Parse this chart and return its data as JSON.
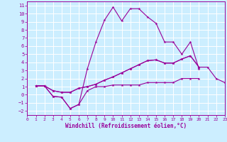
{
  "xlabel": "Windchill (Refroidissement éolien,°C)",
  "bg_color": "#cceeff",
  "line_color": "#990099",
  "grid_color": "#ffffff",
  "xlim": [
    0,
    23
  ],
  "ylim": [
    -2.5,
    11.5
  ],
  "xticks": [
    0,
    1,
    2,
    3,
    4,
    5,
    6,
    7,
    8,
    9,
    10,
    11,
    12,
    13,
    14,
    15,
    16,
    17,
    18,
    19,
    20,
    21,
    22,
    23
  ],
  "yticks": [
    -2,
    -1,
    0,
    1,
    2,
    3,
    4,
    5,
    6,
    7,
    8,
    9,
    10,
    11
  ],
  "line1_x": [
    1,
    2,
    3,
    4,
    5,
    6,
    7,
    8,
    9,
    10,
    11,
    12,
    13,
    14,
    15,
    16,
    17,
    18,
    19,
    20
  ],
  "line1_y": [
    1.1,
    1.1,
    -0.2,
    -0.3,
    -1.7,
    -1.2,
    3.2,
    6.5,
    9.2,
    10.8,
    9.1,
    10.6,
    10.6,
    9.6,
    8.8,
    6.5,
    6.5,
    5.0,
    6.5,
    3.2
  ],
  "line2_x": [
    1,
    2,
    3,
    4,
    5,
    6,
    7,
    8,
    9,
    10,
    11,
    12,
    13,
    14,
    15,
    16,
    17,
    18,
    19,
    20
  ],
  "line2_y": [
    1.1,
    1.1,
    -0.2,
    -0.3,
    -1.7,
    -1.2,
    0.5,
    1.0,
    1.0,
    1.2,
    1.2,
    1.2,
    1.2,
    1.5,
    1.5,
    1.5,
    1.5,
    2.0,
    2.0,
    2.0
  ],
  "line3_x": [
    1,
    2,
    3,
    4,
    5,
    6,
    7,
    8,
    9,
    10,
    11,
    12,
    13,
    14,
    15,
    16,
    17,
    18,
    19,
    20
  ],
  "line3_y": [
    1.1,
    1.1,
    0.5,
    0.3,
    0.3,
    0.8,
    1.0,
    1.3,
    1.8,
    2.2,
    2.7,
    3.2,
    3.7,
    4.2,
    4.3,
    3.9,
    3.9,
    4.4,
    4.8,
    3.4
  ],
  "line4_x": [
    1,
    2,
    3,
    4,
    5,
    6,
    7,
    8,
    9,
    10,
    11,
    12,
    13,
    14,
    15,
    16,
    17,
    18,
    19,
    20,
    21,
    22,
    23
  ],
  "line4_y": [
    1.1,
    1.1,
    0.5,
    0.3,
    0.3,
    0.8,
    1.0,
    1.3,
    1.8,
    2.2,
    2.7,
    3.2,
    3.7,
    4.2,
    4.3,
    3.9,
    3.9,
    4.4,
    4.8,
    3.4,
    3.4,
    2.0,
    1.5
  ]
}
